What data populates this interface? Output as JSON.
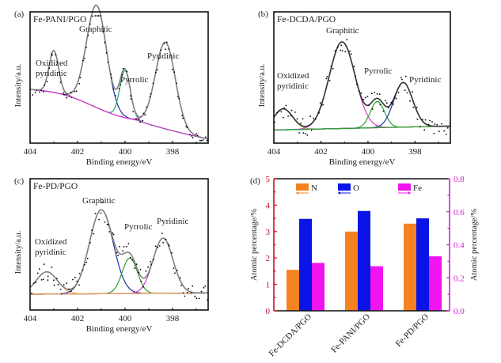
{
  "chart_data": [
    {
      "panel": "(a)",
      "type": "line",
      "title": "Fe-PANI/PGO",
      "xlabel": "Binding energy/eV",
      "ylabel": "Intensity/a.u.",
      "xlim": [
        404,
        396.5
      ],
      "x_reversed": true,
      "xticks": [
        404,
        402,
        400,
        398
      ],
      "yticks": [],
      "peaks": [
        {
          "name": "Oxidized pyridinic",
          "label": "Oxidized\npyridinic",
          "center": 403.0,
          "height": 0.32,
          "width": 0.2,
          "color": "#e8a050"
        },
        {
          "name": "Graphitic",
          "label": "Graphitic",
          "center": 401.2,
          "height": 0.78,
          "width": 0.42,
          "color": "#2030a0"
        },
        {
          "name": "Pyrrolic",
          "label": "Pyrrolic",
          "center": 400.0,
          "height": 0.36,
          "width": 0.22,
          "color": "#20a080"
        },
        {
          "name": "Pyridinic",
          "label": "Pyridinic",
          "center": 398.3,
          "height": 0.66,
          "width": 0.42,
          "color": "#d040d0"
        }
      ],
      "baseline": {
        "start": 0.42,
        "end": 0.03,
        "color": "#d040d0"
      },
      "envelope_color": "#808080",
      "points_color": "#000000"
    },
    {
      "panel": "(b)",
      "type": "line",
      "title": "Fe-DCDA/PGO",
      "xlabel": "Binding energy/eV",
      "ylabel": "Intensity/a.u.",
      "xlim": [
        404,
        396.5
      ],
      "x_reversed": true,
      "xticks": [
        404,
        402,
        400,
        398
      ],
      "yticks": [],
      "peaks": [
        {
          "name": "Oxidized pyridinic",
          "label": "Oxidized\npyridinic",
          "center": 403.6,
          "height": 0.16,
          "width": 0.4,
          "color": "#e8a050"
        },
        {
          "name": "Graphitic",
          "label": "Graphitic",
          "center": 401.1,
          "height": 0.66,
          "width": 0.55,
          "color": "#d040d0"
        },
        {
          "name": "Pyrrolic",
          "label": "Pyrrolic",
          "center": 399.6,
          "height": 0.2,
          "width": 0.3,
          "color": "#30a030"
        },
        {
          "name": "Pyridinic",
          "label": "Pyridinic",
          "center": 398.5,
          "height": 0.34,
          "width": 0.4,
          "color": "#2030a0"
        }
      ],
      "baseline": {
        "start": 0.1,
        "end": 0.13,
        "color": "#30a030"
      },
      "envelope_color": "#333333",
      "points_color": "#000000"
    },
    {
      "panel": "(c)",
      "type": "line",
      "title": "Fe-PD/PGO",
      "xlabel": "Binding energy/eV",
      "ylabel": "Intensity/a.u.",
      "xlim": [
        404,
        396.5
      ],
      "x_reversed": true,
      "xticks": [
        404,
        402,
        400,
        398
      ],
      "yticks": [],
      "peaks": [
        {
          "name": "Oxidized pyridinic",
          "label": "Oxidized\npyridinic",
          "center": 403.3,
          "height": 0.17,
          "width": 0.45,
          "color": "#e8a050"
        },
        {
          "name": "Graphitic",
          "label": "Graphitic",
          "center": 401.0,
          "height": 0.64,
          "width": 0.5,
          "color": "#2030a0"
        },
        {
          "name": "Pyrrolic",
          "label": "Pyrrolic",
          "center": 399.8,
          "height": 0.27,
          "width": 0.32,
          "color": "#30a030"
        },
        {
          "name": "Pyridinic",
          "label": "Pyridinic",
          "center": 398.4,
          "height": 0.42,
          "width": 0.42,
          "color": "#d040d0"
        }
      ],
      "baseline": {
        "start": 0.12,
        "end": 0.13,
        "color": "#e8a050"
      },
      "envelope_color": "#808080",
      "points_color": "#000000"
    },
    {
      "panel": "(d)",
      "type": "bar",
      "title": "",
      "categories": [
        "Fe-DCDA/PGO",
        "Fe-PANI/PGO",
        "Fe-PD/PGO"
      ],
      "series": [
        {
          "name": "N",
          "axis": "left",
          "color": "#f58220",
          "values": [
            1.55,
            3.0,
            3.3
          ]
        },
        {
          "name": "O",
          "axis": "left",
          "color": "#0a14e6",
          "values": [
            3.48,
            3.78,
            3.5
          ]
        },
        {
          "name": "Fe",
          "axis": "right",
          "color": "#f014f0",
          "values": [
            0.29,
            0.27,
            0.33
          ]
        }
      ],
      "ylabel": "Atomic percentage/%",
      "ylabel_right": "Atomic percentage/%",
      "ylim": [
        0,
        5
      ],
      "ylim_right": [
        0,
        0.8
      ],
      "yticks": [
        "0",
        "1",
        "2",
        "3",
        "4",
        "5"
      ],
      "yticks_right": [
        "0.0",
        "0.2",
        "0.4",
        "0.6",
        "0.8"
      ],
      "left_axis_color": "#c8102e",
      "right_axis_color": "#d020d0",
      "legend_position": "top",
      "legend_arrows": {
        "N": "left",
        "O": "left",
        "Fe": "right"
      }
    }
  ]
}
